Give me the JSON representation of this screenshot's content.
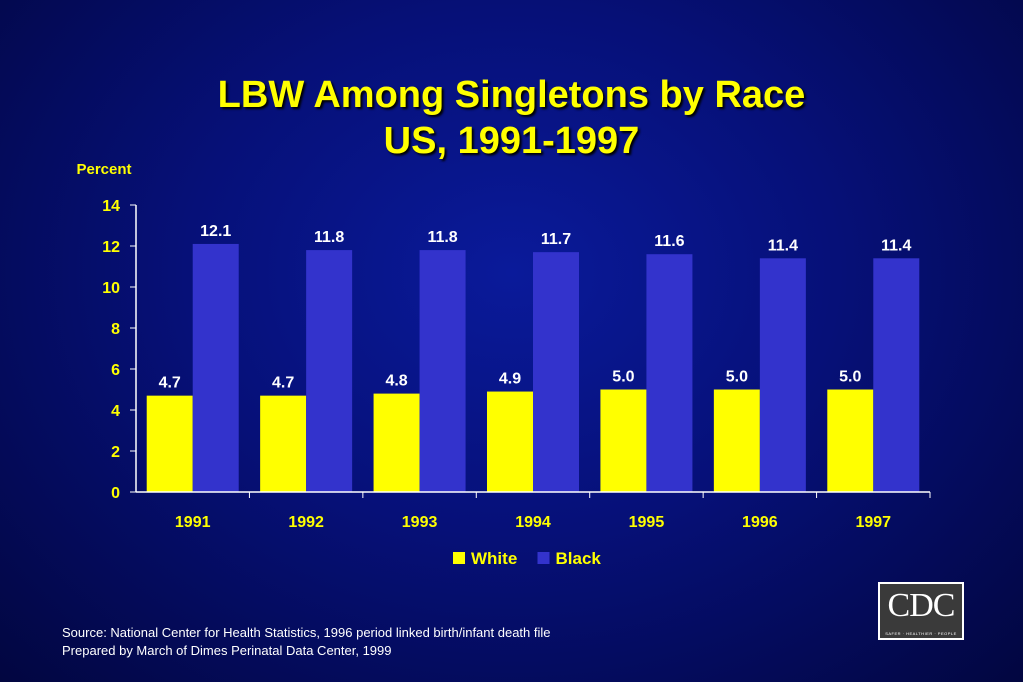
{
  "title": {
    "line1": "LBW Among Singletons by Race",
    "line2": "US, 1991-1997"
  },
  "chart_data": {
    "type": "bar",
    "categories": [
      "1991",
      "1992",
      "1993",
      "1994",
      "1995",
      "1996",
      "1997"
    ],
    "series": [
      {
        "name": "White",
        "values": [
          4.7,
          4.7,
          4.8,
          4.9,
          5.0,
          5.0,
          5.0
        ],
        "labels": [
          "4.7",
          "4.7",
          "4.8",
          "4.9",
          "5.0",
          "5.0",
          "5.0"
        ],
        "color": "#ffff00"
      },
      {
        "name": "Black",
        "values": [
          12.1,
          11.8,
          11.8,
          11.7,
          11.6,
          11.4,
          11.4
        ],
        "labels": [
          "12.1",
          "11.8",
          "11.8",
          "11.7",
          "11.6",
          "11.4",
          "11.4"
        ],
        "color": "#3333cc"
      }
    ],
    "ylabel": "Percent",
    "xlabel": "",
    "ylim": [
      0,
      14
    ],
    "yticks": [
      0,
      2,
      4,
      6,
      8,
      10,
      12,
      14
    ],
    "grid": false,
    "legend": "bottom-center"
  },
  "colors": {
    "axis_text": "#ffff00",
    "data_label": "#ffffff",
    "axis_line": "#ffffff"
  },
  "source": {
    "line1": "Source: National Center for Health Statistics, 1996 period linked birth/infant death file",
    "line2": "Prepared by March of Dimes Perinatal Data Center, 1999"
  },
  "logo": {
    "text": "CDC",
    "tagline": "SAFER · HEALTHIER · PEOPLE"
  }
}
